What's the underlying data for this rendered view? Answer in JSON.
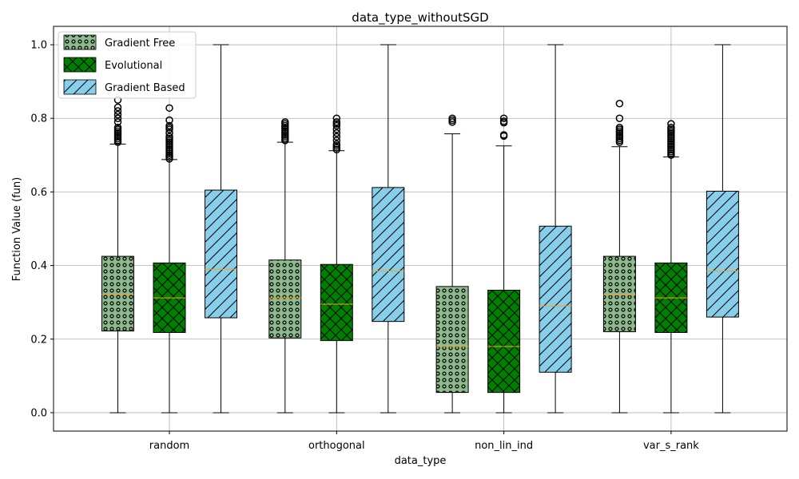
{
  "chart_data": {
    "type": "boxplot",
    "title": "data_type_withoutSGD",
    "xlabel": "data_type",
    "ylabel": "Function Value (fun)",
    "ylim": [
      -0.05,
      1.05
    ],
    "yticks": [
      0.0,
      0.2,
      0.4,
      0.6,
      0.8,
      1.0
    ],
    "grid": true,
    "legend_position": "top-left",
    "categories": [
      "random",
      "orthogonal",
      "non_lin_ind",
      "var_s_rank"
    ],
    "series": [
      {
        "name": "Gradient Free",
        "color": "#8fbc8f",
        "hatch": "circles",
        "boxes": [
          {
            "whislo": 0.0,
            "q1": 0.222,
            "med": 0.322,
            "q3": 0.425,
            "whishi": 0.73,
            "fliers": [
              0.735,
              0.74,
              0.745,
              0.75,
              0.755,
              0.76,
              0.765,
              0.77,
              0.775,
              0.79,
              0.8,
              0.81,
              0.82,
              0.83,
              0.85
            ]
          },
          {
            "whislo": 0.0,
            "q1": 0.203,
            "med": 0.312,
            "q3": 0.415,
            "whishi": 0.735,
            "fliers": [
              0.74,
              0.745,
              0.75,
              0.755,
              0.76,
              0.765,
              0.77,
              0.775,
              0.78,
              0.785,
              0.79
            ]
          },
          {
            "whislo": 0.0,
            "q1": 0.055,
            "med": 0.18,
            "q3": 0.343,
            "whishi": 0.758,
            "fliers": [
              0.79,
              0.795,
              0.8
            ]
          },
          {
            "whislo": 0.0,
            "q1": 0.22,
            "med": 0.32,
            "q3": 0.425,
            "whishi": 0.723,
            "fliers": [
              0.735,
              0.74,
              0.745,
              0.75,
              0.755,
              0.76,
              0.765,
              0.77,
              0.775,
              0.8,
              0.84
            ]
          }
        ]
      },
      {
        "name": "Evolutional",
        "color": "#008000",
        "hatch": "crosses",
        "boxes": [
          {
            "whislo": 0.0,
            "q1": 0.218,
            "med": 0.312,
            "q3": 0.407,
            "whishi": 0.688,
            "fliers": [
              0.69,
              0.695,
              0.7,
              0.705,
              0.71,
              0.715,
              0.72,
              0.725,
              0.73,
              0.735,
              0.74,
              0.745,
              0.75,
              0.76,
              0.77,
              0.775,
              0.78,
              0.795,
              0.828
            ]
          },
          {
            "whislo": 0.0,
            "q1": 0.196,
            "med": 0.295,
            "q3": 0.403,
            "whishi": 0.712,
            "fliers": [
              0.715,
              0.72,
              0.725,
              0.73,
              0.74,
              0.75,
              0.76,
              0.77,
              0.78,
              0.785,
              0.79,
              0.8
            ]
          },
          {
            "whislo": 0.0,
            "q1": 0.055,
            "med": 0.18,
            "q3": 0.333,
            "whishi": 0.725,
            "fliers": [
              0.752,
              0.755,
              0.788,
              0.792,
              0.8
            ]
          },
          {
            "whislo": 0.0,
            "q1": 0.218,
            "med": 0.312,
            "q3": 0.407,
            "whishi": 0.695,
            "fliers": [
              0.7,
              0.705,
              0.71,
              0.715,
              0.72,
              0.725,
              0.73,
              0.735,
              0.74,
              0.745,
              0.75,
              0.755,
              0.76,
              0.765,
              0.77,
              0.775,
              0.785
            ]
          }
        ]
      },
      {
        "name": "Gradient Based",
        "color": "#87ceeb",
        "hatch": "diagonal",
        "boxes": [
          {
            "whislo": 0.0,
            "q1": 0.258,
            "med": 0.39,
            "q3": 0.605,
            "whishi": 1.0,
            "fliers": []
          },
          {
            "whislo": 0.0,
            "q1": 0.248,
            "med": 0.385,
            "q3": 0.612,
            "whishi": 1.0,
            "fliers": []
          },
          {
            "whislo": 0.0,
            "q1": 0.11,
            "med": 0.29,
            "q3": 0.507,
            "whishi": 1.0,
            "fliers": []
          },
          {
            "whislo": 0.0,
            "q1": 0.26,
            "med": 0.385,
            "q3": 0.602,
            "whishi": 1.0,
            "fliers": []
          }
        ]
      }
    ]
  }
}
